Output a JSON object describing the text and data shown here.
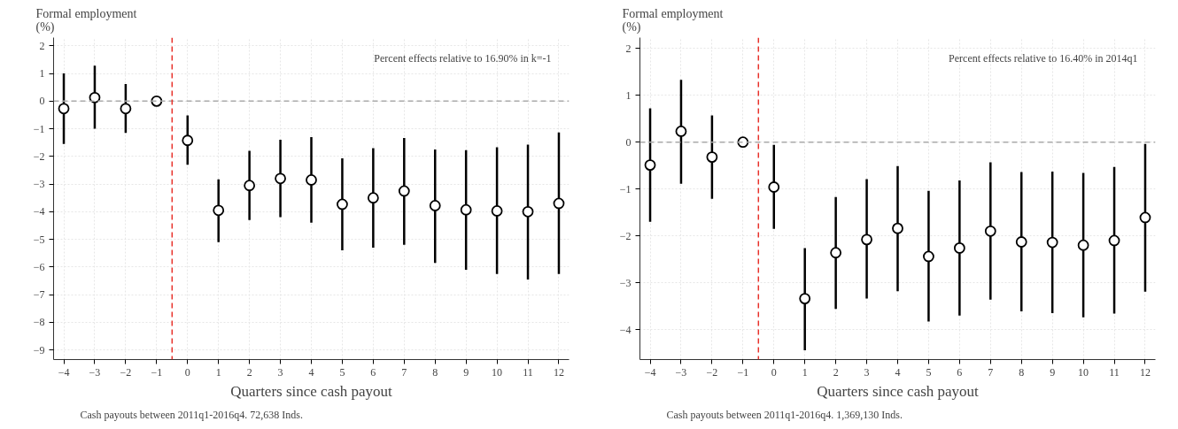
{
  "chart_data": [
    {
      "type": "scatter",
      "ylabel": "Formal employment\n(%)",
      "xlabel": "Quarters since cash payout",
      "annotations": [
        "Percent effects relative to 16.90% in k=-1",
        "Cash payouts between 2011q1-2016q4. 72,638 Inds."
      ],
      "x": [
        -4,
        -3,
        -2,
        -1,
        0,
        1,
        2,
        3,
        4,
        5,
        6,
        7,
        8,
        9,
        10,
        11,
        12
      ],
      "series": [
        {
          "color": "#000000",
          "values": [
            -0.27,
            0.13,
            -0.27,
            0,
            -1.42,
            -3.95,
            -3.05,
            -2.8,
            -2.85,
            -3.73,
            -3.5,
            -3.25,
            -3.78,
            -3.93,
            -3.97,
            -4.0,
            -3.7
          ],
          "errors": [
            [
              -1.55,
              1.0
            ],
            [
              -1.0,
              1.28
            ],
            [
              -1.15,
              0.62
            ],
            null,
            [
              -2.3,
              -0.52
            ],
            [
              -5.1,
              -2.83
            ],
            [
              -4.3,
              -1.8
            ],
            [
              -4.2,
              -1.4
            ],
            [
              -4.4,
              -1.3
            ],
            [
              -5.4,
              -2.07
            ],
            [
              -5.3,
              -1.7
            ],
            [
              -5.2,
              -1.33
            ],
            [
              -5.85,
              -1.75
            ],
            [
              -6.1,
              -1.77
            ],
            [
              -6.25,
              -1.67
            ],
            [
              -6.45,
              -1.57
            ],
            [
              -6.25,
              -1.13
            ]
          ]
        }
      ],
      "xlim": [
        -4.33,
        12.33
      ],
      "xticks": [
        -4,
        -3,
        -2,
        -1,
        0,
        1,
        2,
        3,
        4,
        5,
        6,
        7,
        8,
        9,
        10,
        11,
        12
      ],
      "ylim": [
        -9.35,
        2.3
      ],
      "yticks": [
        -9,
        -8,
        -7,
        -6,
        -5,
        -4,
        -3,
        -2,
        -1,
        0,
        1,
        2
      ],
      "ref_lines": [
        {
          "axis": "y",
          "value": 0,
          "color": "#aaaaaa",
          "line_style": "dashed"
        },
        {
          "axis": "x",
          "value": -0.5,
          "color": "#e8312a",
          "line_style": "dashed"
        }
      ],
      "grid": true,
      "marker": "circle"
    },
    {
      "type": "scatter",
      "ylabel": "Formal employment\n(%)",
      "xlabel": "Quarters since cash payout",
      "annotations": [
        "Percent effects relative to 16.40% in 2014q1",
        "Cash payouts between 2011q1-2016q4.  1,369,130 Inds."
      ],
      "x": [
        -4,
        -3,
        -2,
        -1,
        0,
        1,
        2,
        3,
        4,
        5,
        6,
        7,
        8,
        9,
        10,
        11,
        12
      ],
      "series": [
        {
          "color": "#000000",
          "values": [
            -0.49,
            0.23,
            -0.32,
            0,
            -0.96,
            -3.34,
            -2.36,
            -2.08,
            -1.84,
            -2.44,
            -2.26,
            -1.9,
            -2.13,
            -2.14,
            -2.2,
            -2.1,
            -1.61
          ],
          "errors": [
            [
              -1.7,
              0.72
            ],
            [
              -0.89,
              1.33
            ],
            [
              -1.21,
              0.57
            ],
            null,
            [
              -1.85,
              -0.06
            ],
            [
              -4.44,
              -2.26
            ],
            [
              -3.56,
              -1.17
            ],
            [
              -3.34,
              -0.79
            ],
            [
              -3.18,
              -0.51
            ],
            [
              -3.83,
              -1.04
            ],
            [
              -3.7,
              -0.82
            ],
            [
              -3.36,
              -0.43
            ],
            [
              -3.61,
              -0.64
            ],
            [
              -3.65,
              -0.63
            ],
            [
              -3.74,
              -0.66
            ],
            [
              -3.66,
              -0.53
            ],
            [
              -3.19,
              -0.04
            ]
          ]
        }
      ],
      "xlim": [
        -4.33,
        12.33
      ],
      "xticks": [
        -4,
        -3,
        -2,
        -1,
        0,
        1,
        2,
        3,
        4,
        5,
        6,
        7,
        8,
        9,
        10,
        11,
        12
      ],
      "ylim": [
        -4.64,
        2.23
      ],
      "yticks": [
        -4,
        -3,
        -2,
        -1,
        0,
        1,
        2
      ],
      "ref_lines": [
        {
          "axis": "y",
          "value": 0,
          "color": "#aaaaaa",
          "line_style": "dashed"
        },
        {
          "axis": "x",
          "value": -0.5,
          "color": "#e8312a",
          "line_style": "dashed"
        }
      ],
      "grid": true,
      "marker": "circle"
    }
  ]
}
